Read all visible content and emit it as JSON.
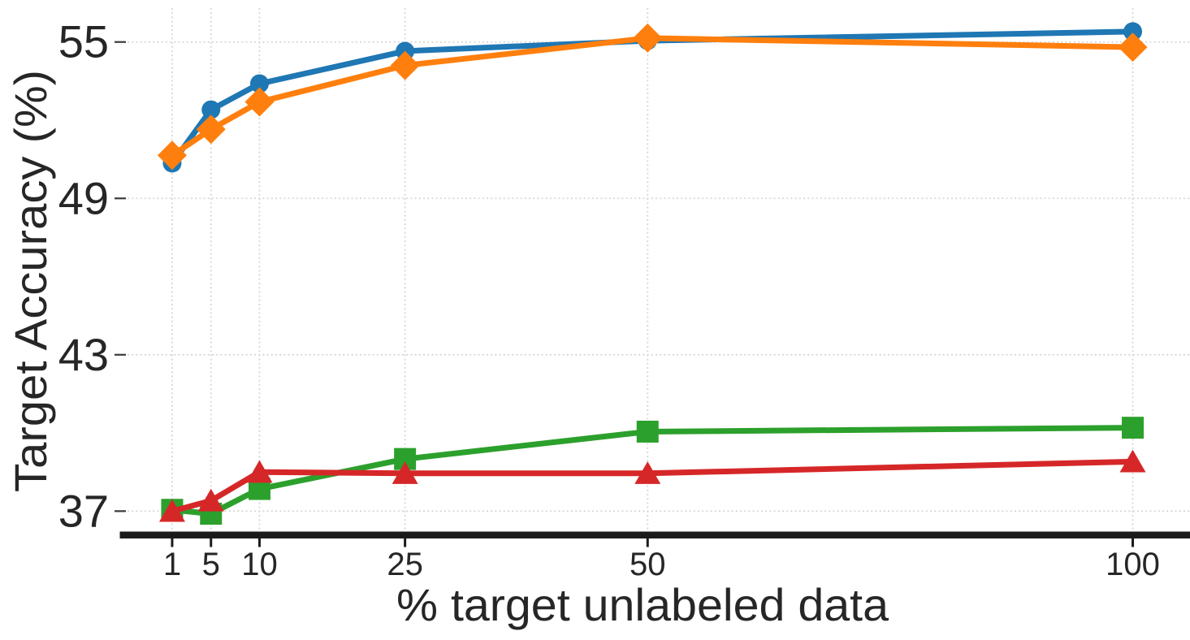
{
  "figure": {
    "background": "#ffffff",
    "text_color": "#262626",
    "grid_color": "#d6d6d6",
    "spine_color": "#1b1b1b"
  },
  "chart_data": {
    "type": "line",
    "title": "",
    "xlabel": "% target unlabeled data",
    "ylabel": "Target Accuracy (%)",
    "xscale": "linear",
    "grid": true,
    "legend_position": "none",
    "x": [
      1,
      5,
      10,
      25,
      50,
      100
    ],
    "xticks": {
      "values": [
        1,
        5,
        10,
        25,
        50,
        100
      ],
      "labels": [
        "1",
        "5",
        "10",
        "25",
        "50",
        "100"
      ]
    },
    "yticks": {
      "values": [
        37,
        43,
        49,
        55
      ],
      "labels": [
        "37",
        "43",
        "49",
        "55"
      ]
    },
    "xlim": [
      -3.6,
      105.9
    ],
    "ylim": [
      36.2,
      56.3
    ],
    "series": [
      {
        "name": "blue-circle-series",
        "marker": "circle",
        "color": "#1f77b4",
        "values": [
          50.35,
          52.4,
          53.4,
          54.65,
          55.05,
          55.4
        ]
      },
      {
        "name": "orange-diamond-series",
        "marker": "diamond",
        "color": "#ff7f0e",
        "values": [
          50.65,
          51.65,
          52.7,
          54.1,
          55.15,
          54.8
        ]
      },
      {
        "name": "green-square-series",
        "marker": "square",
        "color": "#2ca02c",
        "values": [
          37.05,
          36.9,
          37.85,
          39.0,
          40.05,
          40.2
        ]
      },
      {
        "name": "red-triangle-series",
        "marker": "triangle",
        "color": "#d62728",
        "values": [
          37.0,
          37.4,
          38.5,
          38.45,
          38.45,
          38.9
        ]
      }
    ]
  }
}
